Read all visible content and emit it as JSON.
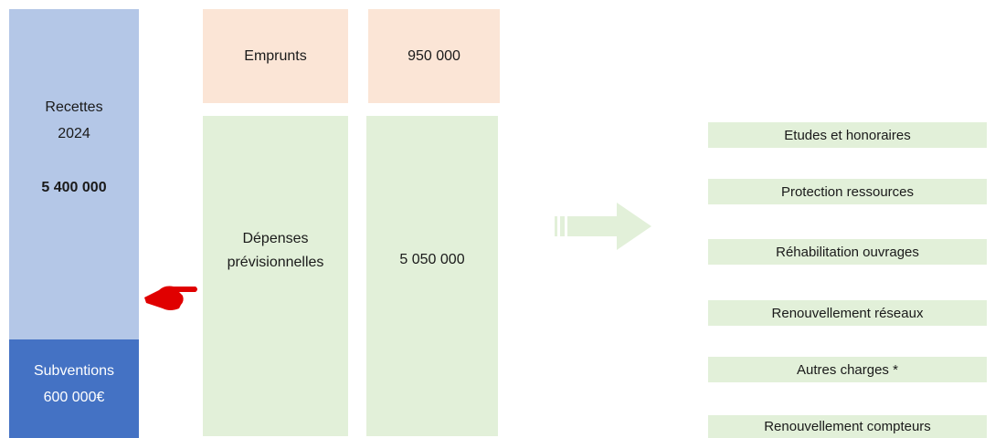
{
  "left": {
    "recettes_lines": [
      "Recettes",
      "2024"
    ],
    "recettes_amount": "5 400 000",
    "subventions_lines": [
      "Subventions",
      "600 000€"
    ]
  },
  "emprunts": {
    "label": "Emprunts",
    "amount": "950 000"
  },
  "depenses": {
    "label_lines": [
      "Dépenses",
      "prévisionnelles"
    ],
    "amount": "5 050 000"
  },
  "items": [
    "Etudes et honoraires",
    "Protection ressources",
    "Réhabilitation ouvrages",
    "Renouvellement réseaux",
    "Autres charges *",
    "Renouvellement compteurs"
  ]
}
